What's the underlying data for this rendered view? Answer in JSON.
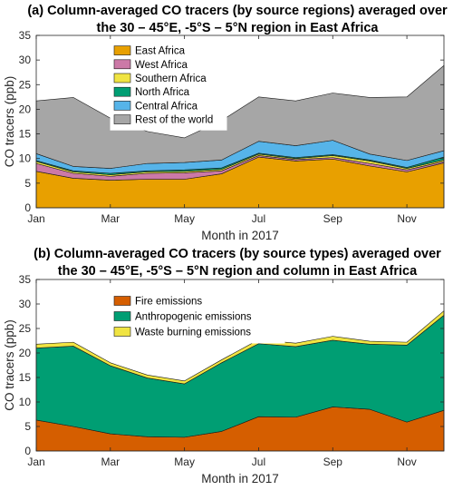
{
  "chart_data": [
    {
      "type": "area",
      "stacked": true,
      "title_lines": [
        "(a) Column-averaged CO tracers (by source regions) averaged over",
        "the 30 – 45°E, -5°S – 5°N region in East Africa"
      ],
      "xlabel": "Month in 2017",
      "ylabel": "CO tracers (ppb)",
      "x": [
        1,
        2,
        3,
        4,
        5,
        6,
        7,
        8,
        9,
        10,
        11,
        12
      ],
      "xticks": [
        1,
        3,
        5,
        7,
        9,
        11
      ],
      "xtick_labels": [
        "Jan",
        "Mar",
        "May",
        "Jul",
        "Sep",
        "Nov"
      ],
      "xlim": [
        1,
        12
      ],
      "ylim": [
        0,
        35
      ],
      "yticks": [
        0,
        5,
        10,
        15,
        20,
        25,
        30,
        35
      ],
      "legend_position": "top-left",
      "series": [
        {
          "name": "East Africa",
          "color": "#E8A000",
          "values": [
            7.4,
            6.0,
            5.6,
            5.8,
            5.8,
            6.9,
            10.3,
            9.5,
            9.9,
            8.5,
            7.3,
            9.1
          ]
        },
        {
          "name": "West Africa",
          "color": "#CC79A7",
          "values": [
            1.6,
            1.0,
            0.8,
            1.2,
            1.3,
            0.6,
            0.3,
            0.3,
            0.3,
            0.5,
            0.4,
            0.3
          ]
        },
        {
          "name": "Southern Africa",
          "color": "#F0E442",
          "values": [
            0.4,
            0.3,
            0.3,
            0.3,
            0.3,
            0.3,
            0.3,
            0.2,
            0.4,
            0.5,
            0.3,
            0.3
          ]
        },
        {
          "name": "North Africa",
          "color": "#009E73",
          "values": [
            0.2,
            0.2,
            0.3,
            0.2,
            0.3,
            0.3,
            0.2,
            0.2,
            0.2,
            0.2,
            0.2,
            0.6
          ]
        },
        {
          "name": "Central Africa",
          "color": "#56B4E9",
          "values": [
            1.4,
            0.9,
            1.0,
            1.5,
            1.5,
            1.6,
            2.4,
            2.4,
            2.9,
            1.2,
            1.4,
            1.3
          ]
        },
        {
          "name": "Rest of the world",
          "color": "#A6A6A6",
          "values": [
            10.7,
            14.0,
            10.2,
            6.5,
            5.0,
            8.0,
            9.0,
            9.1,
            9.6,
            11.5,
            12.9,
            17.3
          ]
        }
      ]
    },
    {
      "type": "area",
      "stacked": true,
      "title_lines": [
        "(b) Column-averaged CO tracers (by source types) averaged over",
        "the 30 – 45°E, -5°S – 5°N region and column in East Africa"
      ],
      "xlabel": "Month in 2017",
      "ylabel": "CO tracers (ppb)",
      "x": [
        1,
        2,
        3,
        4,
        5,
        6,
        7,
        8,
        9,
        10,
        11,
        12
      ],
      "xticks": [
        1,
        3,
        5,
        7,
        9,
        11
      ],
      "xtick_labels": [
        "Jan",
        "Mar",
        "May",
        "Jul",
        "Sep",
        "Nov"
      ],
      "xlim": [
        1,
        12
      ],
      "ylim": [
        0,
        35
      ],
      "yticks": [
        0,
        5,
        10,
        15,
        20,
        25,
        30,
        35
      ],
      "legend_position": "top-left",
      "series": [
        {
          "name": "Fire emissions",
          "color": "#D55E00",
          "values": [
            6.3,
            5.0,
            3.5,
            2.9,
            2.8,
            4.0,
            7.0,
            6.9,
            9.0,
            8.5,
            5.9,
            8.3
          ]
        },
        {
          "name": "Anthropogenic emissions",
          "color": "#009E73",
          "values": [
            14.7,
            16.4,
            13.9,
            12.0,
            10.9,
            14.0,
            14.9,
            14.4,
            13.6,
            13.3,
            15.7,
            19.4
          ]
        },
        {
          "name": "Waste burning emissions",
          "color": "#F0E442",
          "values": [
            0.8,
            0.8,
            0.6,
            0.6,
            0.6,
            0.6,
            0.8,
            0.7,
            0.8,
            0.6,
            0.6,
            0.9
          ]
        }
      ]
    }
  ]
}
